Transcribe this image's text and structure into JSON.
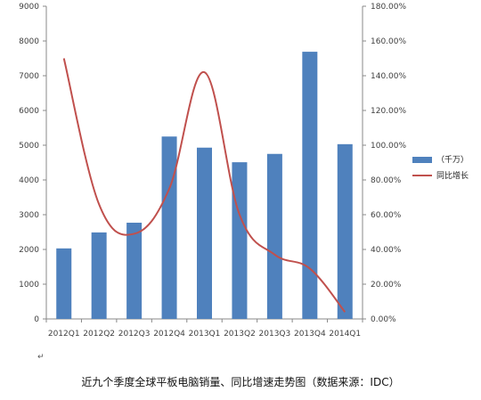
{
  "chart_data": {
    "type": "bar",
    "categories": [
      "2012Q1",
      "2012Q2",
      "2012Q3",
      "2012Q4",
      "2013Q1",
      "2013Q2",
      "2013Q3",
      "2013Q4",
      "2014Q1"
    ],
    "series": [
      {
        "name": "（千万）",
        "type": "bar",
        "axis": "left",
        "color": "#4f81bd",
        "values": [
          2030,
          2490,
          2770,
          5250,
          4930,
          4510,
          4750,
          7690,
          5030
        ]
      },
      {
        "name": "同比增长",
        "type": "line",
        "axis": "right",
        "color": "#c0504d",
        "values": [
          150.0,
          66.0,
          49.0,
          75.0,
          142.0,
          60.0,
          37.0,
          29.0,
          4.0
        ]
      }
    ],
    "left_axis": {
      "min": 0,
      "max": 9000,
      "step": 1000,
      "ticks": [
        "0",
        "1000",
        "2000",
        "3000",
        "4000",
        "5000",
        "6000",
        "7000",
        "8000",
        "9000"
      ]
    },
    "right_axis": {
      "min": 0,
      "max": 180,
      "step": 20,
      "ticks": [
        "0.00%",
        "20.00%",
        "40.00%",
        "60.00%",
        "80.00%",
        "100.00%",
        "120.00%",
        "140.00%",
        "160.00%",
        "180.00%"
      ]
    },
    "grid": false,
    "legend": "right"
  },
  "caption": "近九个季度全球平板电脑销量、同比增速走势图（数据来源：IDC）",
  "para_mark": "↵"
}
